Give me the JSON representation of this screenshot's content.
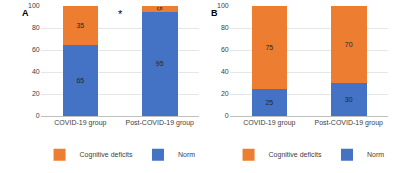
{
  "chart_data": [
    {
      "type": "bar",
      "title": "A",
      "stacked": true,
      "data_labels": true,
      "legend": "bottom",
      "grid": true,
      "categories": [
        "COVID-19 group",
        "Post-COVID-19 group"
      ],
      "series": [
        {
          "name": "Norm",
          "color": "#4472c4",
          "values": [
            65,
            95
          ]
        },
        {
          "name": "Cognitive deficits",
          "color": "#ed7d31",
          "values": [
            35,
            5
          ]
        }
      ],
      "ylim": [
        0,
        100
      ],
      "yticks": [
        0,
        20,
        40,
        60,
        80,
        100
      ],
      "annotations": [
        "*"
      ]
    },
    {
      "type": "bar",
      "title": "B",
      "stacked": true,
      "data_labels": true,
      "legend": "bottom",
      "grid": true,
      "categories": [
        "COVID-19 group",
        "Post-COVID-19 group"
      ],
      "series": [
        {
          "name": "Norm",
          "color": "#4472c4",
          "values": [
            25,
            30
          ]
        },
        {
          "name": "Cognitive deficits",
          "color": "#ed7d31",
          "values": [
            75,
            70
          ]
        }
      ],
      "ylim": [
        0,
        100
      ],
      "yticks": [
        0,
        20,
        40,
        60,
        80,
        100
      ]
    }
  ]
}
